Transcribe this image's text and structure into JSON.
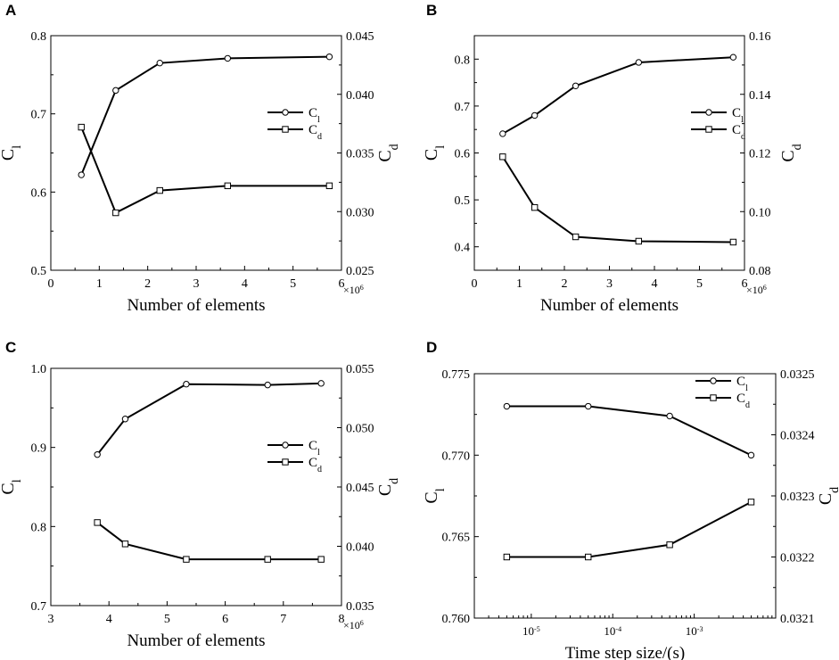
{
  "chart_data": [
    {
      "panel_label": "A",
      "type": "line",
      "xlabel": "Number of elements",
      "x_multiplier": "×10",
      "x_multiplier_exp": "6",
      "xlim": [
        0,
        6
      ],
      "xticks": [
        "0",
        "1",
        "2",
        "3",
        "4",
        "5",
        "6"
      ],
      "ylabel_left": {
        "main": "C",
        "sub": "l"
      },
      "ylabel_right": {
        "main": "C",
        "sub": "d"
      },
      "ylim_left": [
        0.5,
        0.8
      ],
      "yticks_left": [
        "0.5",
        "0.6",
        "0.7",
        "0.8"
      ],
      "ylim_right": [
        0.025,
        0.045
      ],
      "yticks_right": [
        "0.025",
        "0.030",
        "0.035",
        "0.040",
        "0.045"
      ],
      "legend_position": "right",
      "series": [
        {
          "name": "C",
          "sub": "l",
          "marker": "circle",
          "axis": "left",
          "x": [
            0.63,
            1.34,
            2.25,
            3.65,
            5.75
          ],
          "y": [
            0.622,
            0.73,
            0.765,
            0.771,
            0.773
          ]
        },
        {
          "name": "C",
          "sub": "d",
          "marker": "square",
          "axis": "right",
          "x": [
            0.63,
            1.34,
            2.25,
            3.65,
            5.75
          ],
          "y": [
            0.0372,
            0.0299,
            0.0318,
            0.0322,
            0.0322
          ]
        }
      ]
    },
    {
      "panel_label": "B",
      "type": "line",
      "xlabel": "Number of elements",
      "x_multiplier": "×10",
      "x_multiplier_exp": "6",
      "xlim": [
        0,
        6
      ],
      "xticks": [
        "0",
        "1",
        "2",
        "3",
        "4",
        "5",
        "6"
      ],
      "ylabel_left": {
        "main": "C",
        "sub": "l"
      },
      "ylabel_right": {
        "main": "C",
        "sub": "d"
      },
      "ylim_left": [
        0.35,
        0.85
      ],
      "yticks_left": [
        "0.4",
        "0.5",
        "0.6",
        "0.7",
        "0.8"
      ],
      "ylim_right": [
        0.08,
        0.16
      ],
      "yticks_right": [
        "0.08",
        "0.10",
        "0.12",
        "0.14",
        "0.16"
      ],
      "legend_position": "right",
      "series": [
        {
          "name": "C",
          "sub": "l",
          "marker": "circle",
          "axis": "left",
          "x": [
            0.63,
            1.34,
            2.25,
            3.65,
            5.75
          ],
          "y": [
            0.641,
            0.68,
            0.743,
            0.793,
            0.804
          ]
        },
        {
          "name": "C",
          "sub": "d",
          "marker": "square",
          "axis": "right",
          "x": [
            0.63,
            1.34,
            2.25,
            3.65,
            5.75
          ],
          "y": [
            0.1187,
            0.1014,
            0.0914,
            0.0899,
            0.0896
          ]
        }
      ]
    },
    {
      "panel_label": "C",
      "type": "line",
      "xlabel": "Number of elements",
      "x_multiplier": "×10",
      "x_multiplier_exp": "6",
      "xlim": [
        3,
        8
      ],
      "xticks": [
        "3",
        "4",
        "5",
        "6",
        "7",
        "8"
      ],
      "ylabel_left": {
        "main": "C",
        "sub": "l"
      },
      "ylabel_right": {
        "main": "C",
        "sub": "d"
      },
      "ylim_left": [
        0.7,
        1.0
      ],
      "yticks_left": [
        "0.7",
        "0.8",
        "0.9",
        "1.0"
      ],
      "ylim_right": [
        0.035,
        0.055
      ],
      "yticks_right": [
        "0.035",
        "0.040",
        "0.045",
        "0.050",
        "0.055"
      ],
      "legend_position": "right",
      "series": [
        {
          "name": "C",
          "sub": "l",
          "marker": "circle",
          "axis": "left",
          "x": [
            3.8,
            4.28,
            5.33,
            6.73,
            7.65
          ],
          "y": [
            0.891,
            0.936,
            0.98,
            0.979,
            0.981
          ]
        },
        {
          "name": "C",
          "sub": "d",
          "marker": "square",
          "axis": "right",
          "x": [
            3.8,
            4.28,
            5.33,
            6.73,
            7.65
          ],
          "y": [
            0.042,
            0.0402,
            0.0389,
            0.0389,
            0.0389
          ]
        }
      ]
    },
    {
      "panel_label": "D",
      "type": "line",
      "xlabel": "Time step size/(s)",
      "xscale": "log",
      "xlim": [
        2e-06,
        0.01
      ],
      "xticks": [
        {
          "base": "10",
          "exp": "-5",
          "value": 1e-05
        },
        {
          "base": "10",
          "exp": "-4",
          "value": 0.0001
        },
        {
          "base": "10",
          "exp": "-3",
          "value": 0.001
        }
      ],
      "ylabel_left": {
        "main": "C",
        "sub": "l"
      },
      "ylabel_right": {
        "main": "C",
        "sub": "d"
      },
      "ylim_left": [
        0.76,
        0.775
      ],
      "yticks_left": [
        "0.760",
        "0.765",
        "0.770",
        "0.775"
      ],
      "ylim_right": [
        0.0321,
        0.0325
      ],
      "yticks_right": [
        "0.0321",
        "0.0322",
        "0.0323",
        "0.0324",
        "0.0325"
      ],
      "legend_position": "top-right",
      "series": [
        {
          "name": "C",
          "sub": "l",
          "marker": "circle",
          "axis": "left",
          "x": [
            5e-06,
            5e-05,
            0.0005,
            0.005
          ],
          "y": [
            0.773,
            0.773,
            0.7724,
            0.77
          ]
        },
        {
          "name": "C",
          "sub": "d",
          "marker": "square",
          "axis": "right",
          "x": [
            5e-06,
            5e-05,
            0.0005,
            0.005
          ],
          "y": [
            0.0322,
            0.0322,
            0.03222,
            0.03229
          ]
        }
      ]
    }
  ]
}
